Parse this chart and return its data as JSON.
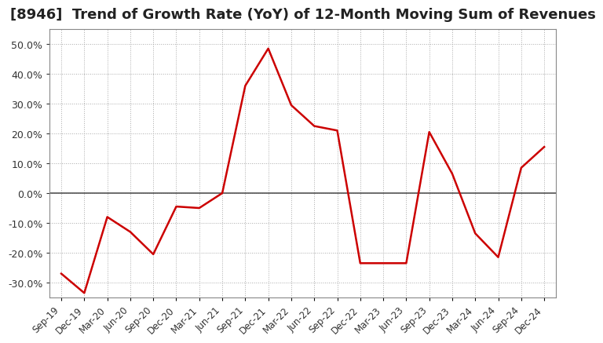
{
  "title": "[8946]  Trend of Growth Rate (YoY) of 12-Month Moving Sum of Revenues",
  "title_fontsize": 13,
  "line_color": "#cc0000",
  "background_color": "#ffffff",
  "grid_color": "#aaaaaa",
  "ylim": [
    -0.35,
    0.55
  ],
  "yticks": [
    -0.3,
    -0.2,
    -0.1,
    0.0,
    0.1,
    0.2,
    0.3,
    0.4,
    0.5
  ],
  "xlabels": [
    "Sep-19",
    "Dec-19",
    "Mar-20",
    "Jun-20",
    "Sep-20",
    "Dec-20",
    "Mar-21",
    "Jun-21",
    "Sep-21",
    "Dec-21",
    "Mar-22",
    "Jun-22",
    "Sep-22",
    "Dec-22",
    "Mar-23",
    "Jun-23",
    "Sep-23",
    "Dec-23",
    "Mar-24",
    "Jun-24",
    "Sep-24",
    "Dec-24"
  ],
  "values": [
    -0.27,
    -0.335,
    -0.08,
    -0.13,
    -0.205,
    -0.045,
    -0.05,
    0.0,
    0.36,
    0.485,
    0.295,
    0.225,
    0.21,
    -0.235,
    -0.235,
    -0.235,
    0.205,
    0.065,
    -0.135,
    -0.215,
    0.085,
    0.155
  ]
}
